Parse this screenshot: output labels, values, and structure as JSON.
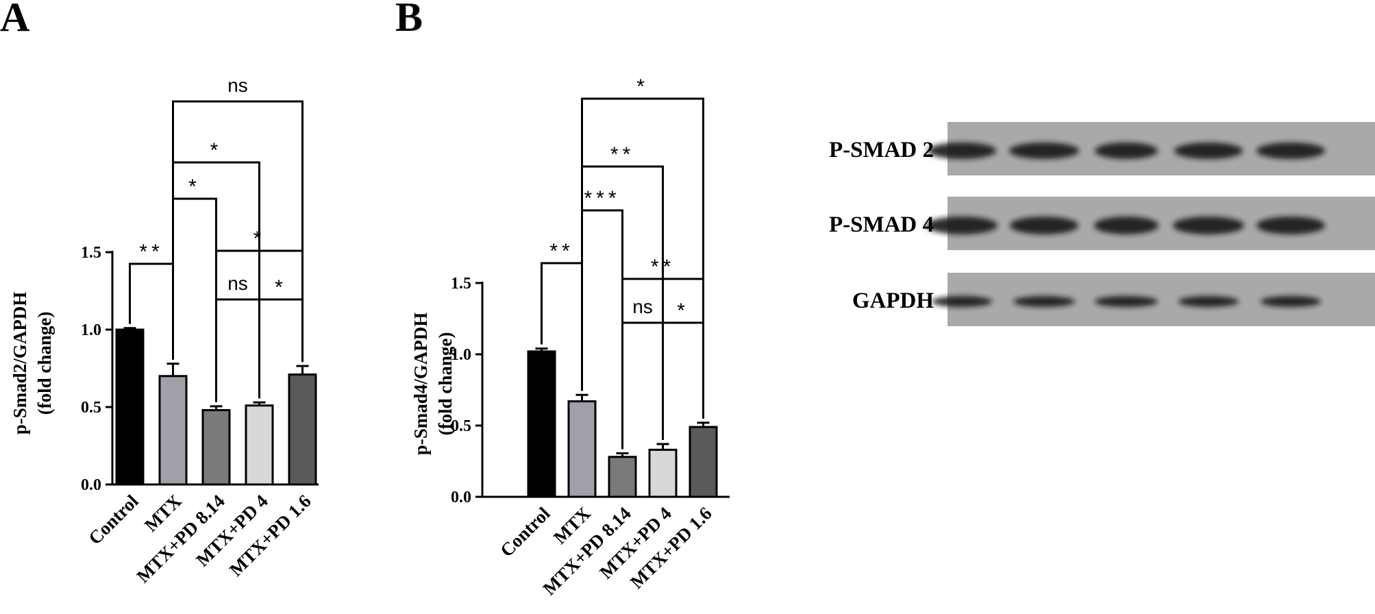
{
  "chart_data": [
    {
      "panel": "A",
      "type": "bar",
      "categories": [
        "Control",
        "MTX",
        "MTX+PD 8.14",
        "MTX+PD 4",
        "MTX+PD 1.6"
      ],
      "values": [
        1.0,
        0.7,
        0.48,
        0.51,
        0.71
      ],
      "errors": [
        0.01,
        0.08,
        0.025,
        0.02,
        0.055
      ],
      "colors": [
        "#000000",
        "#a0a0a8",
        "#7a7a7a",
        "#d8d8d8",
        "#5a5a5a"
      ],
      "ylabel": [
        "p-Smad2/GAPDH",
        "(fold change)"
      ],
      "ylim": [
        0,
        1.5
      ],
      "yticks": [
        "0.0",
        "0.5",
        "1.0",
        "1.5"
      ],
      "comparisons": [
        {
          "from": 0,
          "to": 1,
          "label": "**"
        },
        {
          "from": 1,
          "to": 2,
          "label": "*"
        },
        {
          "from": 1,
          "to": 3,
          "label": "*"
        },
        {
          "from": 1,
          "to": 4,
          "label": "ns"
        },
        {
          "from": 2,
          "to": 4,
          "label": "*"
        },
        {
          "from": 2,
          "to": 3,
          "label": "ns"
        },
        {
          "from": 3,
          "to": 4,
          "label": "*"
        }
      ]
    },
    {
      "panel": "B",
      "type": "bar",
      "categories": [
        "Control",
        "MTX",
        "MTX+PD 8.14",
        "MTX+PD 4",
        "MTX+PD 1.6"
      ],
      "values": [
        1.02,
        0.67,
        0.28,
        0.33,
        0.49
      ],
      "errors": [
        0.02,
        0.045,
        0.025,
        0.04,
        0.03
      ],
      "colors": [
        "#000000",
        "#a0a0a8",
        "#7a7a7a",
        "#d8d8d8",
        "#5a5a5a"
      ],
      "ylabel": [
        "p-Smad4/GAPDH",
        "(fold change)"
      ],
      "ylim": [
        0,
        1.5
      ],
      "yticks": [
        "0.0",
        "0.5",
        "1.0",
        "1.5"
      ],
      "comparisons": [
        {
          "from": 0,
          "to": 1,
          "label": "**"
        },
        {
          "from": 1,
          "to": 2,
          "label": "***"
        },
        {
          "from": 1,
          "to": 3,
          "label": "**"
        },
        {
          "from": 1,
          "to": 4,
          "label": "*"
        },
        {
          "from": 2,
          "to": 4,
          "label": "**"
        },
        {
          "from": 2,
          "to": 3,
          "label": "ns"
        },
        {
          "from": 3,
          "to": 4,
          "label": "*"
        }
      ]
    }
  ],
  "blot": {
    "rows": [
      "P-SMAD 2",
      "P-SMAD 4",
      "GAPDH"
    ]
  }
}
